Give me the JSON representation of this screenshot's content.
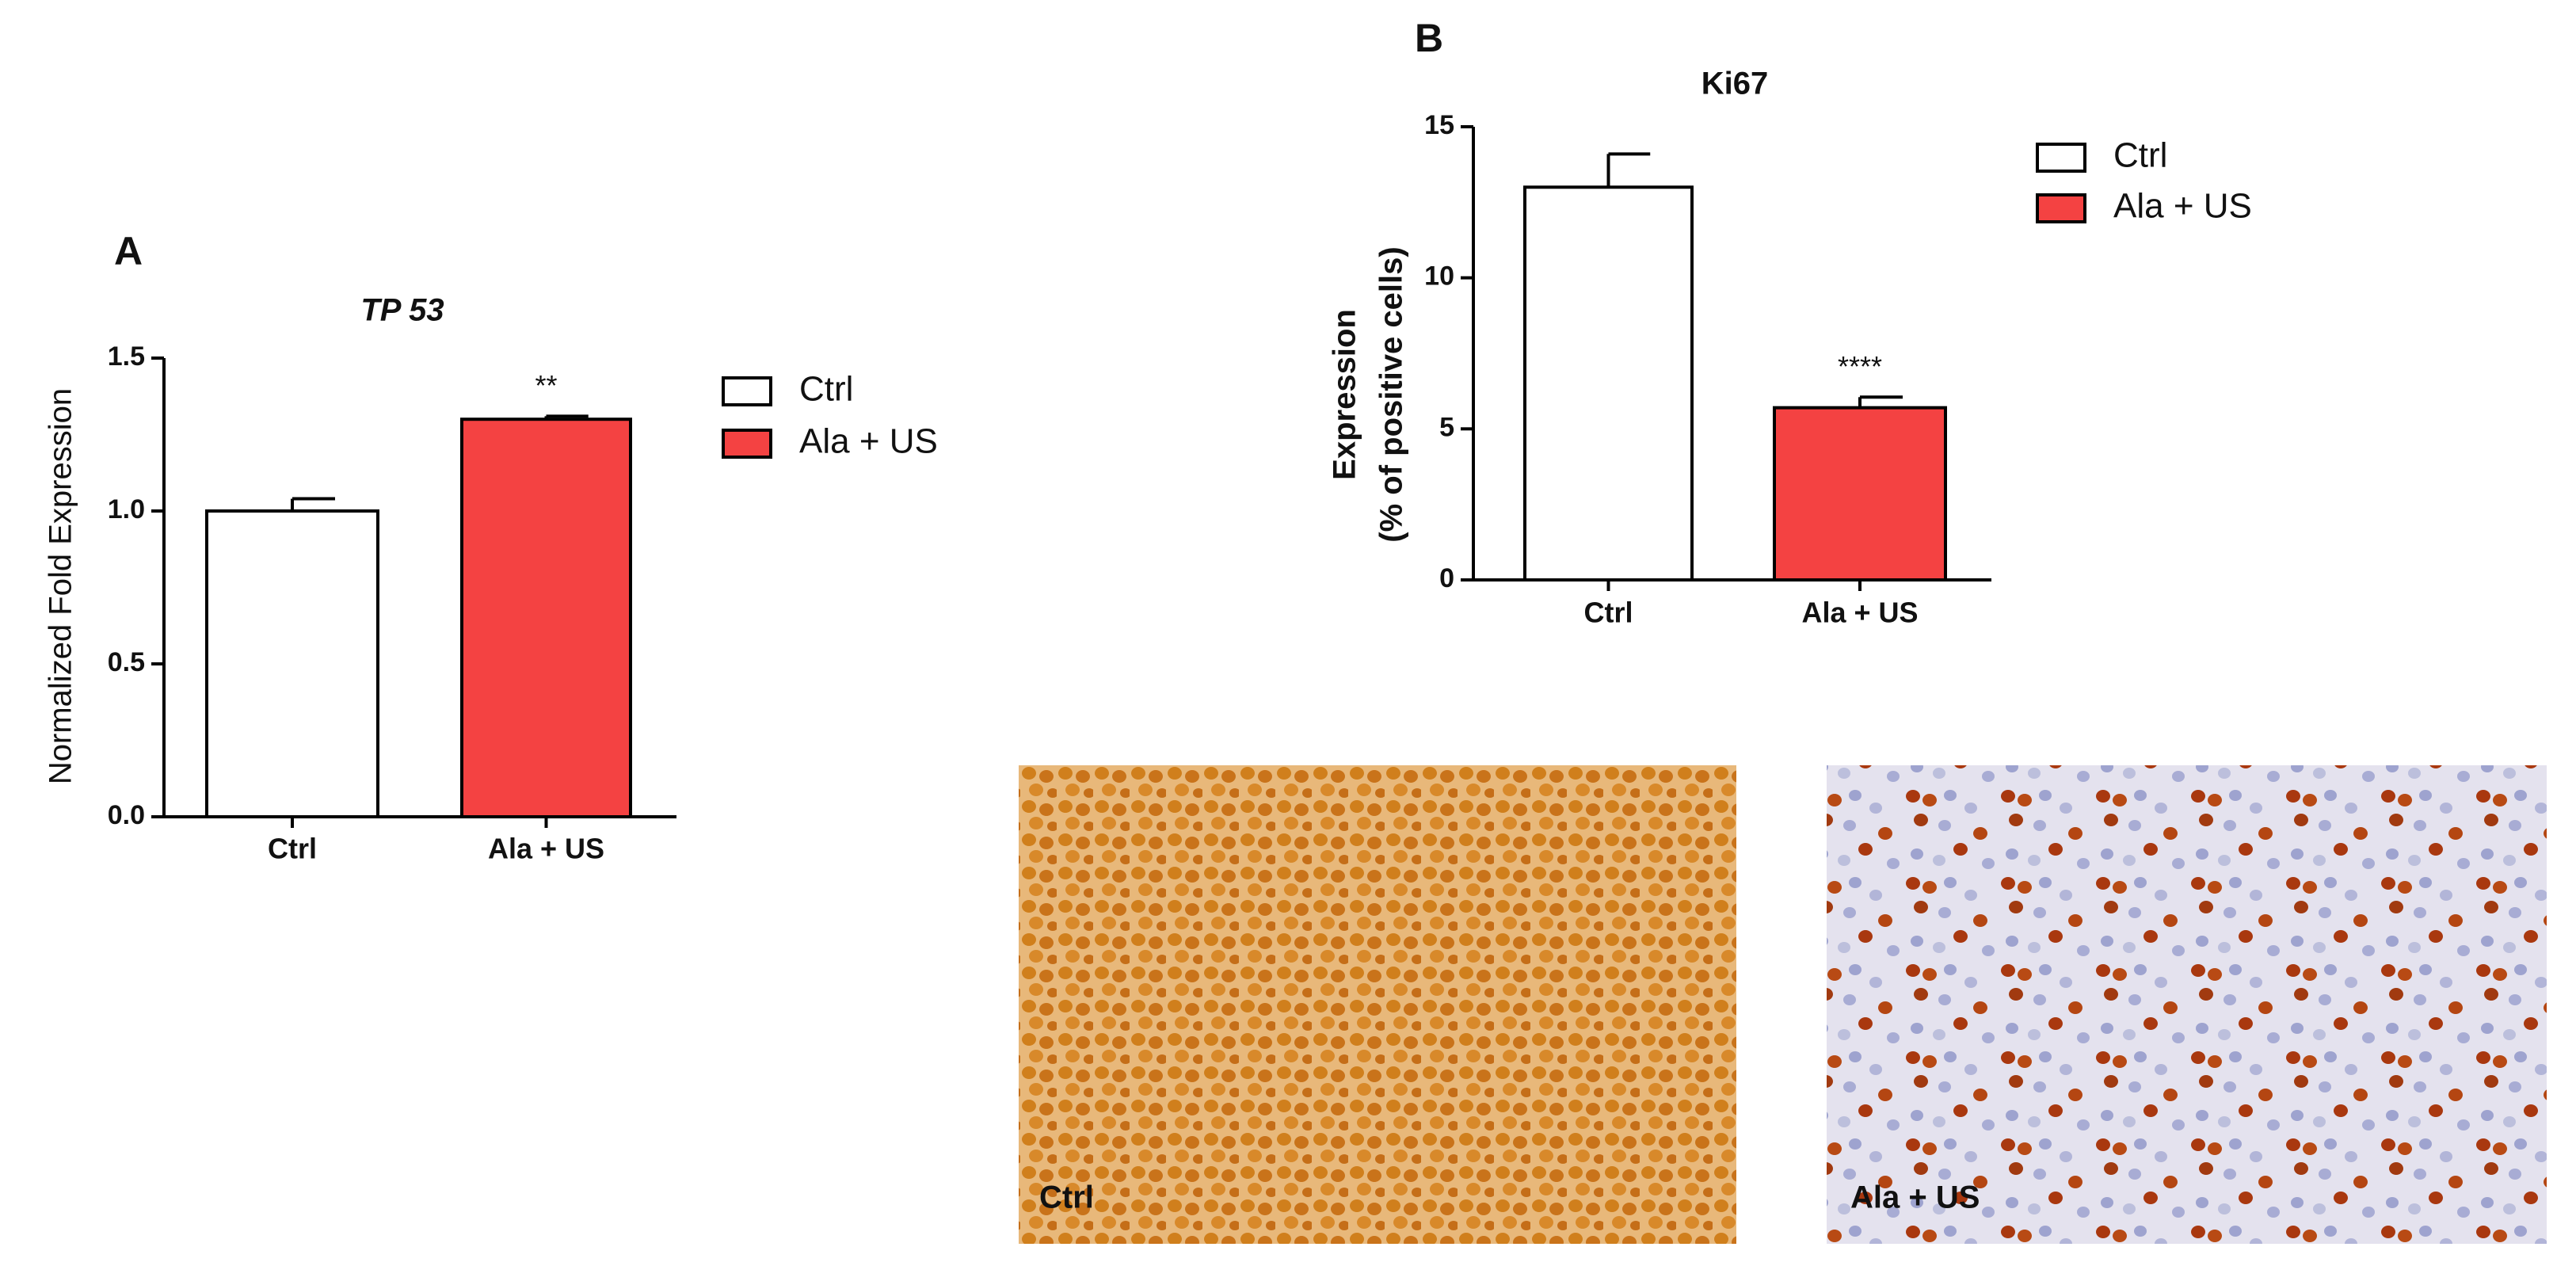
{
  "chart_data": [
    {
      "type": "bar",
      "panel": "A",
      "title": "TP 53",
      "y_label": [
        "Normalized Fold Expression"
      ],
      "categories": [
        "Ctrl",
        "Ala + US"
      ],
      "values": [
        1.0,
        1.3
      ],
      "errors": [
        0.04,
        0.01
      ],
      "significance": [
        null,
        "**"
      ],
      "colors": [
        "#ffffff",
        "#f44242"
      ],
      "ylim": [
        0,
        1.5
      ],
      "yticks": [
        {
          "value": 0,
          "label": "0.0"
        },
        {
          "value": 0.5,
          "label": "0.5"
        },
        {
          "value": 1,
          "label": "1.0"
        },
        {
          "value": 1.5,
          "label": "1.5"
        }
      ]
    },
    {
      "type": "bar",
      "panel": "B",
      "title": "Ki67",
      "y_label": [
        "Expression",
        "(% of positive cells)"
      ],
      "categories": [
        "Ctrl",
        "Ala + US"
      ],
      "values": [
        13,
        5.7
      ],
      "errors": [
        1.1,
        0.35
      ],
      "significance": [
        null,
        "****"
      ],
      "colors": [
        "#ffffff",
        "#f44242"
      ],
      "ylim": [
        0,
        15
      ],
      "yticks": [
        0,
        5,
        10,
        15
      ]
    }
  ],
  "images": [
    {
      "label": "Ctrl"
    },
    {
      "label": "Ala + US"
    }
  ]
}
